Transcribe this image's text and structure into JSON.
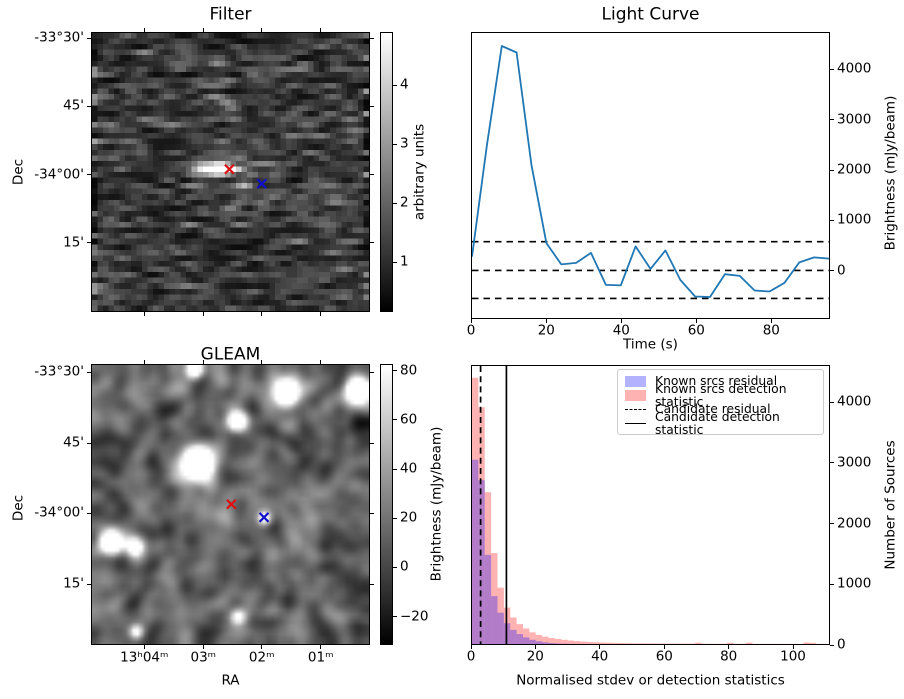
{
  "figure": {
    "background": "#ffffff"
  },
  "filter": {
    "title": "Filter",
    "ylabel": "Dec",
    "ytick_labels": [
      "-33°30'",
      "45'",
      "-34°00'",
      "15'"
    ],
    "colorbar": {
      "label": "arbitrary units",
      "tick_labels": [
        "4",
        "3",
        "2",
        "1"
      ]
    },
    "markers": [
      {
        "name": "red-x",
        "color": "#dd1111",
        "x": 0.496,
        "y": 0.49
      },
      {
        "name": "blue-x",
        "color": "#1111cc",
        "x": 0.613,
        "y": 0.542
      }
    ]
  },
  "light_curve": {
    "title": "Light Curve",
    "xlabel": "Time (s)",
    "ylabel": "Brightness (mJy/beam)",
    "xtick_labels": [
      "0",
      "20",
      "40",
      "60",
      "80"
    ],
    "ytick_labels": [
      "0",
      "1000",
      "2000",
      "3000",
      "4000"
    ]
  },
  "gleam": {
    "title": "GLEAM",
    "xlabel": "RA",
    "ylabel": "Dec",
    "xtick_labels": [
      "13ʰ04ᵐ",
      "03ᵐ",
      "02ᵐ",
      "01ᵐ"
    ],
    "ytick_labels": [
      "-33°30'",
      "45'",
      "-34°00'",
      "15'"
    ],
    "colorbar": {
      "label": "Brightness (mJy/beam)",
      "tick_labels": [
        "80",
        "60",
        "40",
        "20",
        "0",
        "−20"
      ]
    },
    "markers": [
      {
        "name": "red-x",
        "color": "#dd1111",
        "x": 0.503,
        "y": 0.499
      },
      {
        "name": "blue-x",
        "color": "#1111cc",
        "x": 0.621,
        "y": 0.546
      }
    ]
  },
  "histogram": {
    "xlabel": "Normalised stdev or detection statistics",
    "ylabel": "Number of Sources",
    "xtick_labels": [
      "0",
      "20",
      "40",
      "60",
      "80",
      "100"
    ],
    "ytick_labels": [
      "0",
      "1000",
      "2000",
      "3000",
      "4000"
    ],
    "legend": [
      {
        "label": "Known srcs residual",
        "swatch": "patch",
        "color": "rgba(0,0,255,0.30)"
      },
      {
        "label": "Known srcs detection statistic",
        "swatch": "patch",
        "color": "rgba(255,0,0,0.30)"
      },
      {
        "label": "Candidate residual",
        "swatch": "dashed",
        "color": "#000000"
      },
      {
        "label": "Candidate detection statistic",
        "swatch": "solid",
        "color": "#000000"
      }
    ]
  },
  "chart_data": [
    {
      "type": "line",
      "title": "Light Curve",
      "xlabel": "Time (s)",
      "ylabel": "Brightness (mJy/beam)",
      "color": "#1f77b4",
      "x": [
        0,
        4,
        8,
        12,
        16,
        20,
        24,
        28,
        32,
        36,
        40,
        44,
        48,
        52,
        56,
        60,
        64,
        68,
        72,
        76,
        80,
        84,
        88,
        92,
        96
      ],
      "y": [
        275,
        2500,
        4480,
        4350,
        2100,
        545,
        120,
        150,
        350,
        -290,
        -300,
        480,
        30,
        400,
        -190,
        -520,
        -530,
        -75,
        -110,
        -400,
        -420,
        -250,
        160,
        260,
        235
      ],
      "hlines": {
        "style": "dashed",
        "color": "#000000",
        "values": [
          574,
          0,
          -560
        ]
      },
      "xlim": [
        0,
        96
      ],
      "ylim": [
        -950,
        4740
      ],
      "xticks": [
        0,
        20,
        40,
        60,
        80
      ],
      "yticks": [
        0,
        1000,
        2000,
        3000,
        4000
      ],
      "grid": false,
      "ylabel_position": "right"
    },
    {
      "type": "histogram",
      "xlabel": "Normalised stdev or detection statistics",
      "ylabel": "Number of Sources",
      "bin_start": 0,
      "bin_width": 2,
      "xlim": [
        0,
        112
      ],
      "ylim": [
        0,
        4615
      ],
      "xticks": [
        0,
        20,
        40,
        60,
        80,
        100
      ],
      "yticks": [
        0,
        1000,
        2000,
        3000,
        4000
      ],
      "legend_position": "upper center",
      "series": [
        {
          "name": "Known srcs residual",
          "color": "rgba(0,0,255,0.30)",
          "values": [
            3060,
            2720,
            1480,
            795,
            520,
            345,
            235,
            165,
            110,
            70,
            45,
            28,
            16,
            9,
            5,
            3,
            2,
            1,
            0,
            0,
            0,
            0,
            0,
            0,
            0,
            0,
            0,
            0,
            0,
            0,
            0,
            0,
            0,
            0,
            0,
            0,
            0,
            0,
            0,
            0,
            0,
            0,
            0,
            0,
            0,
            0,
            0,
            0,
            0,
            0,
            0,
            0,
            0,
            0,
            0,
            0
          ]
        },
        {
          "name": "Known srcs detection statistic",
          "color": "rgba(255,0,0,0.30)",
          "values": [
            4420,
            3930,
            2520,
            1510,
            935,
            605,
            440,
            330,
            258,
            193,
            150,
            122,
            100,
            84,
            70,
            58,
            48,
            40,
            34,
            29,
            25,
            21,
            18,
            16,
            14,
            12,
            11,
            10,
            9,
            8,
            8,
            7,
            7,
            6,
            6,
            22,
            5,
            4,
            4,
            4,
            20,
            4,
            4,
            22,
            3,
            3,
            3,
            3,
            2,
            2,
            2,
            2,
            25,
            18,
            2,
            2
          ]
        }
      ],
      "vlines": [
        {
          "label": "Candidate residual",
          "x": 2.7,
          "style": "dashed",
          "color": "#000000"
        },
        {
          "label": "Candidate detection statistic",
          "x": 10.8,
          "style": "solid",
          "color": "#000000"
        }
      ]
    },
    {
      "type": "heatmap",
      "title": "Filter",
      "xlabel": "RA",
      "ylabel": "Dec",
      "description": "grayscale pixelated noise map (~50x50 cells), mostly dark, bright horizontal streak near centre",
      "colorbar": {
        "label": "arbitrary units",
        "range": [
          0.15,
          4.9
        ],
        "ticks": [
          1,
          2,
          3,
          4
        ],
        "cmap": "gray"
      },
      "bright_features": [
        {
          "x": 0.45,
          "y": 0.488,
          "rx": 0.055,
          "ry": 0.016,
          "a": 1.2
        },
        {
          "x": 0.555,
          "y": 0.548,
          "rx": 0.022,
          "ry": 0.013,
          "a": 0.5
        }
      ],
      "markers": [
        {
          "color": "#dd1111",
          "x": 0.496,
          "y": 0.49
        },
        {
          "color": "#1111cc",
          "x": 0.613,
          "y": 0.542
        }
      ]
    },
    {
      "type": "heatmap",
      "title": "GLEAM",
      "xlabel": "RA",
      "ylabel": "Dec",
      "description": "smooth grayscale radio map with bright point sources",
      "colorbar": {
        "label": "Brightness (mJy/beam)",
        "range": [
          -31,
          83
        ],
        "ticks": [
          -20,
          0,
          20,
          40,
          60,
          80
        ],
        "cmap": "gray"
      },
      "sources": [
        {
          "x": 0.37,
          "y": 0.015,
          "r": 0.022,
          "a": 1.3
        },
        {
          "x": 0.7,
          "y": 0.095,
          "r": 0.032,
          "a": 1.7
        },
        {
          "x": 0.955,
          "y": 0.09,
          "r": 0.032,
          "a": 1.7
        },
        {
          "x": 0.525,
          "y": 0.2,
          "r": 0.024,
          "a": 1.3
        },
        {
          "x": 0.385,
          "y": 0.355,
          "r": 0.038,
          "a": 1.9
        },
        {
          "x": 0.068,
          "y": 0.635,
          "r": 0.03,
          "a": 1.6
        },
        {
          "x": 0.155,
          "y": 0.655,
          "r": 0.022,
          "a": 1.0
        },
        {
          "x": 0.622,
          "y": 0.548,
          "r": 0.018,
          "a": 0.85
        },
        {
          "x": 0.527,
          "y": 0.905,
          "r": 0.02,
          "a": 0.85
        },
        {
          "x": 0.16,
          "y": 0.955,
          "r": 0.018,
          "a": 0.8
        }
      ],
      "markers": [
        {
          "color": "#dd1111",
          "x": 0.503,
          "y": 0.499
        },
        {
          "color": "#1111cc",
          "x": 0.621,
          "y": 0.546
        }
      ]
    }
  ]
}
